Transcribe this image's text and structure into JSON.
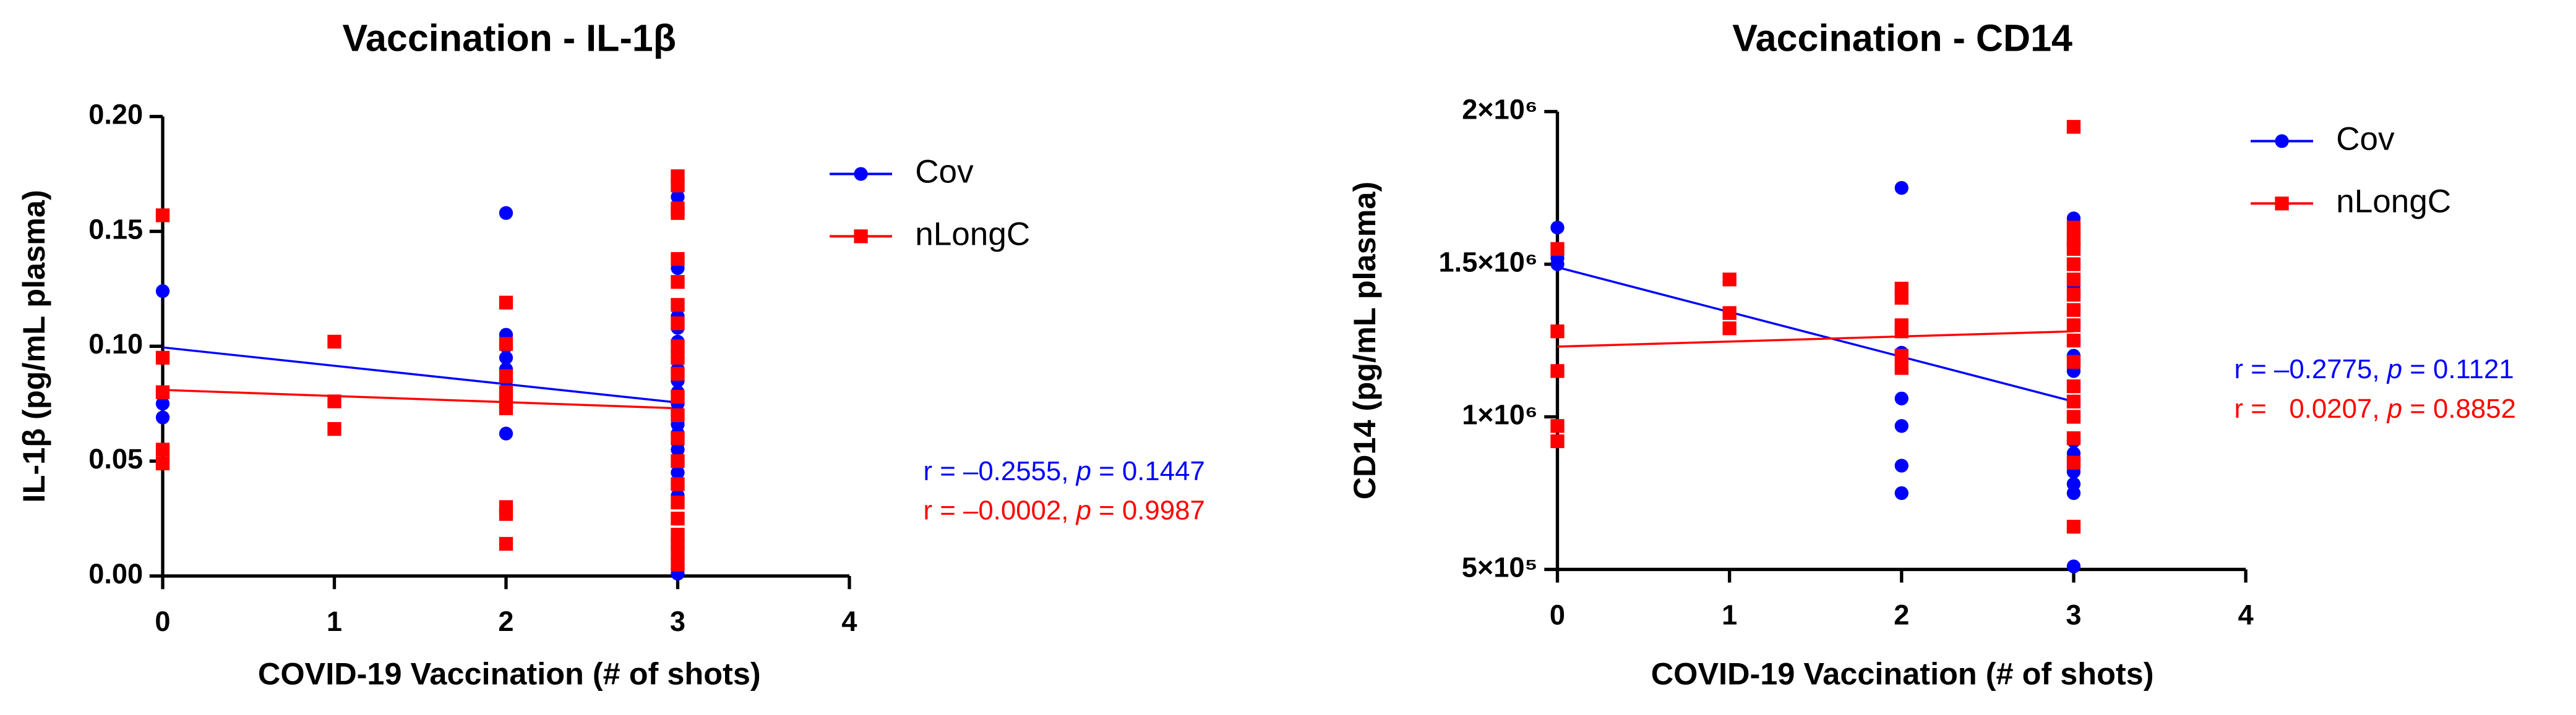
{
  "chart_data": [
    {
      "type": "scatter",
      "title": "Vaccination - IL-1β",
      "x_label": "COVID-19 Vaccination (# of shots)",
      "y_label": "IL-1β (pg/mL plasma)",
      "xlim": [
        0,
        4
      ],
      "xticks": [
        0,
        1,
        2,
        3,
        4
      ],
      "ylim": [
        0,
        0.2
      ],
      "yticks": [
        {
          "value": 0,
          "label": "0.00"
        },
        0.05,
        {
          "value": 0.1,
          "label": "0.10"
        },
        0.15,
        {
          "value": 0.2,
          "label": "0.20"
        }
      ],
      "series": [
        {
          "name": "Cov",
          "color": "#0000ff",
          "marker": "circle",
          "x": [
            0,
            0,
            0,
            2,
            2,
            2,
            2,
            2,
            2,
            2,
            2,
            3,
            3,
            3,
            3,
            3,
            3,
            3,
            3,
            3,
            3,
            3,
            3,
            3,
            3,
            3,
            3,
            3,
            3,
            3,
            3,
            3,
            3,
            3
          ],
          "values": [
            0.124,
            0.075,
            0.069,
            0.158,
            0.105,
            0.1,
            0.095,
            0.09,
            0.085,
            0.08,
            0.062,
            0.165,
            0.16,
            0.134,
            0.113,
            0.108,
            0.102,
            0.098,
            0.095,
            0.09,
            0.085,
            0.08,
            0.075,
            0.07,
            0.066,
            0.062,
            0.058,
            0.055,
            0.045,
            0.04,
            0.035,
            0.025,
            0.003,
            0.001
          ]
        },
        {
          "name": "nLongC",
          "color": "#ff0000",
          "marker": "square",
          "x": [
            0,
            0,
            0,
            0,
            0,
            1,
            1,
            1,
            2,
            2,
            2,
            2,
            2,
            2,
            2,
            2,
            2,
            3,
            3,
            3,
            3,
            3,
            3,
            3,
            3,
            3,
            3,
            3,
            3,
            3,
            3,
            3,
            3,
            3,
            3,
            3,
            3,
            3,
            3
          ],
          "values": [
            0.157,
            0.095,
            0.08,
            0.055,
            0.049,
            0.102,
            0.076,
            0.064,
            0.119,
            0.101,
            0.087,
            0.08,
            0.076,
            0.073,
            0.03,
            0.027,
            0.014,
            0.174,
            0.17,
            0.16,
            0.158,
            0.138,
            0.128,
            0.118,
            0.11,
            0.1,
            0.095,
            0.088,
            0.078,
            0.07,
            0.06,
            0.05,
            0.04,
            0.032,
            0.025,
            0.018,
            0.014,
            0.01,
            0.005
          ]
        }
      ],
      "fits": [
        {
          "color": "#0000ff",
          "x": [
            0,
            3
          ],
          "values": [
            0.0995,
            0.0755
          ]
        },
        {
          "color": "#ff0000",
          "x": [
            0,
            3
          ],
          "values": [
            0.081,
            0.073
          ]
        }
      ],
      "annotations": [
        {
          "color": "#0000ff",
          "parts": [
            "r = –0.2555, ",
            "p",
            " = 0.1447"
          ]
        },
        {
          "color": "#ff0000",
          "parts": [
            "r = –0.0002, ",
            "p",
            " = 0.9987"
          ]
        }
      ]
    },
    {
      "type": "scatter",
      "title": "Vaccination - CD14",
      "x_label": "COVID-19 Vaccination (# of shots)",
      "y_label": "CD14 (pg/mL plasma)",
      "xlim": [
        0,
        4
      ],
      "xticks": [
        0,
        1,
        2,
        3,
        4
      ],
      "ylim": [
        500000,
        2000000
      ],
      "yticks": [
        {
          "value": 500000,
          "label": "5×10⁵"
        },
        {
          "value": 1000000,
          "label": "1×10⁶"
        },
        {
          "value": 1500000,
          "label": "1.5×10⁶"
        },
        {
          "value": 2000000,
          "label": "2×10⁶"
        }
      ],
      "series": [
        {
          "name": "Cov",
          "color": "#0000ff",
          "marker": "circle",
          "x": [
            0,
            0,
            0,
            2,
            2,
            2,
            2,
            2,
            2,
            2,
            3,
            3,
            3,
            3,
            3,
            3,
            3,
            3,
            3,
            3,
            3,
            3,
            3,
            3,
            3,
            3,
            3,
            3
          ],
          "values": [
            1620000,
            1520000,
            1500000,
            1750000,
            1280000,
            1210000,
            1060000,
            970000,
            840000,
            750000,
            1650000,
            1570000,
            1430000,
            1400000,
            1300000,
            1250000,
            1200000,
            1150000,
            1100000,
            1050000,
            1000000,
            920000,
            880000,
            850000,
            820000,
            780000,
            750000,
            510000
          ]
        },
        {
          "name": "nLongC",
          "color": "#ff0000",
          "marker": "square",
          "x": [
            0,
            0,
            0,
            0,
            0,
            1,
            1,
            1,
            2,
            2,
            2,
            2,
            2,
            2,
            3,
            3,
            3,
            3,
            3,
            3,
            3,
            3,
            3,
            3,
            3,
            3,
            3,
            3,
            3,
            3,
            3
          ],
          "values": [
            1550000,
            1280000,
            1150000,
            970000,
            920000,
            1450000,
            1340000,
            1290000,
            1420000,
            1390000,
            1300000,
            1280000,
            1200000,
            1160000,
            1950000,
            1620000,
            1580000,
            1550000,
            1500000,
            1450000,
            1400000,
            1350000,
            1300000,
            1250000,
            1180000,
            1100000,
            1050000,
            1000000,
            930000,
            850000,
            640000
          ]
        }
      ],
      "fits": [
        {
          "color": "#0000ff",
          "x": [
            0,
            3
          ],
          "values": [
            1490000,
            1050000
          ]
        },
        {
          "color": "#ff0000",
          "x": [
            0,
            3
          ],
          "values": [
            1230000,
            1280000
          ]
        }
      ],
      "annotations": [
        {
          "color": "#0000ff",
          "parts": [
            "r = –0.2775, ",
            "p",
            " = 0.1121"
          ]
        },
        {
          "color": "#ff0000",
          "parts": [
            "r =   0.0207, ",
            "p",
            " = 0.8852"
          ]
        }
      ]
    }
  ]
}
